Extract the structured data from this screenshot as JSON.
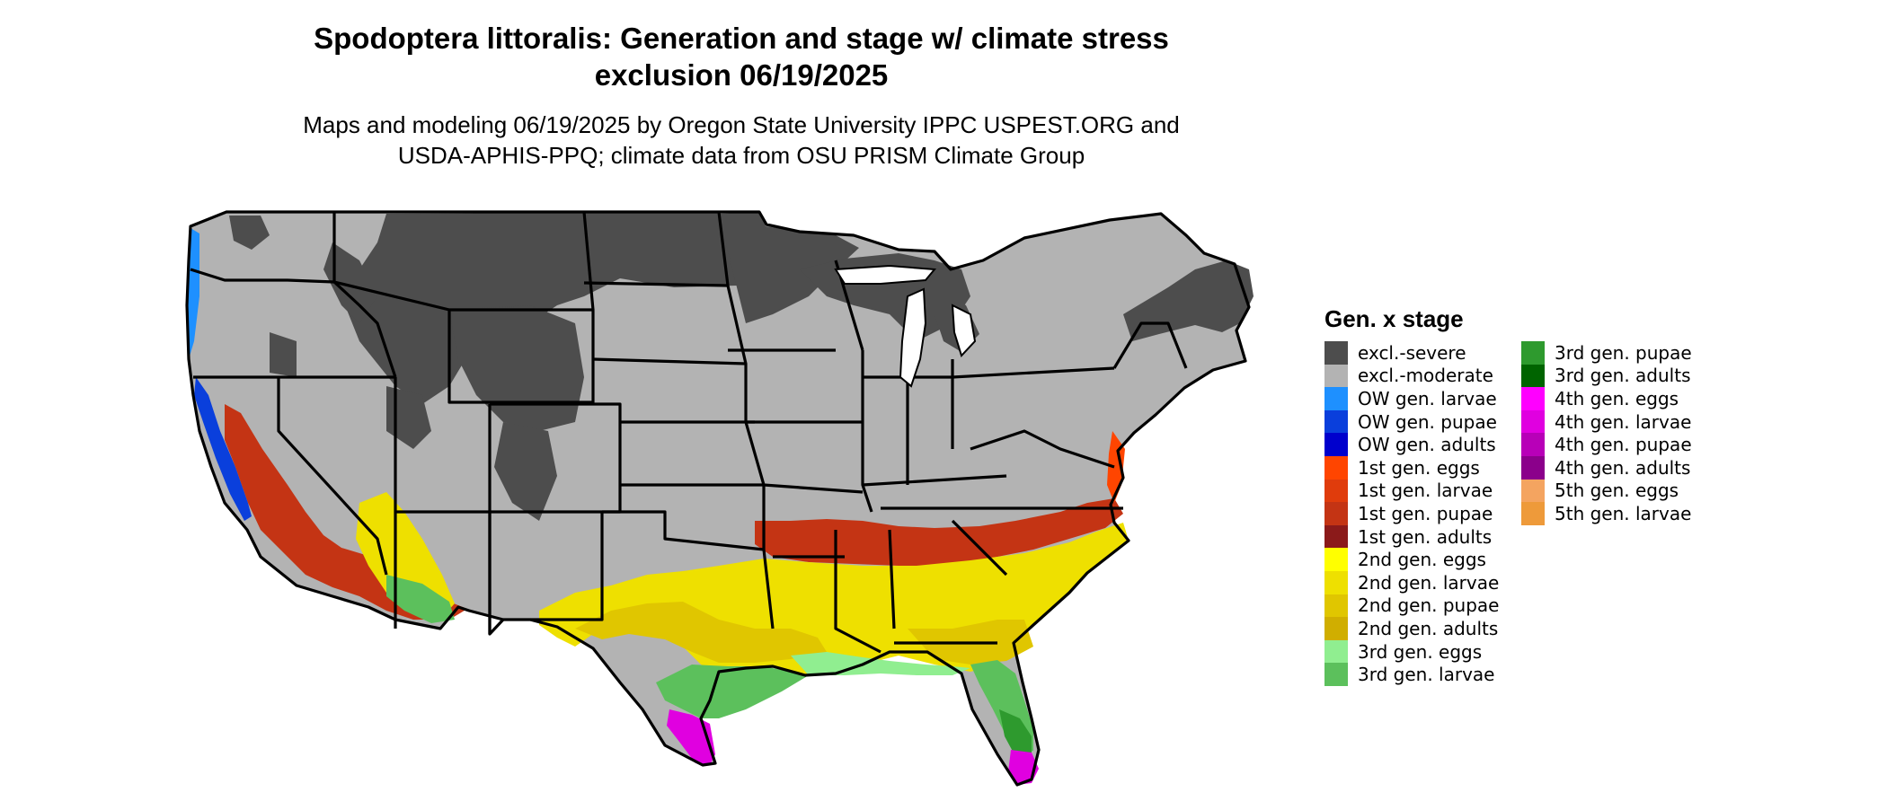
{
  "title_line1": "Spodoptera littoralis: Generation and stage w/ climate stress",
  "title_line2": "exclusion 06/19/2025",
  "subtitle_line1": "Maps and modeling 06/19/2025 by Oregon State University IPPC USPEST.ORG and",
  "subtitle_line2": "USDA-APHIS-PPQ; climate data from OSU PRISM Climate Group",
  "legend": {
    "title": "Gen. x stage",
    "items": [
      {
        "label": "excl.-severe",
        "color": "#4d4d4d"
      },
      {
        "label": "excl.-moderate",
        "color": "#b3b3b3"
      },
      {
        "label": "OW gen. larvae",
        "color": "#1e90ff"
      },
      {
        "label": "OW gen. pupae",
        "color": "#0a3fdc"
      },
      {
        "label": "OW gen. adults",
        "color": "#0000cd"
      },
      {
        "label": "1st gen. eggs",
        "color": "#ff4500"
      },
      {
        "label": "1st gen. larvae",
        "color": "#e03c0c"
      },
      {
        "label": "1st gen. pupae",
        "color": "#c43414"
      },
      {
        "label": "1st gen. adults",
        "color": "#8b1a1a"
      },
      {
        "label": "2nd gen. eggs",
        "color": "#ffff00"
      },
      {
        "label": "2nd gen. larvae",
        "color": "#eee000"
      },
      {
        "label": "2nd gen. pupae",
        "color": "#e0c600"
      },
      {
        "label": "2nd gen. adults",
        "color": "#d0ae00"
      },
      {
        "label": "3rd gen. eggs",
        "color": "#90ee90"
      },
      {
        "label": "3rd gen. larvae",
        "color": "#5cc05c"
      },
      {
        "label": "3rd gen. pupae",
        "color": "#2e9a2e"
      },
      {
        "label": "3rd gen. adults",
        "color": "#006400"
      },
      {
        "label": "4th gen. eggs",
        "color": "#ff00ff"
      },
      {
        "label": "4th gen. larvae",
        "color": "#e000e0"
      },
      {
        "label": "4th gen. pupae",
        "color": "#b800b8"
      },
      {
        "label": "4th gen. adults",
        "color": "#8b008b"
      },
      {
        "label": "5th gen. eggs",
        "color": "#f4a460"
      },
      {
        "label": "5th gen. larvae",
        "color": "#ee9a3a"
      }
    ]
  }
}
